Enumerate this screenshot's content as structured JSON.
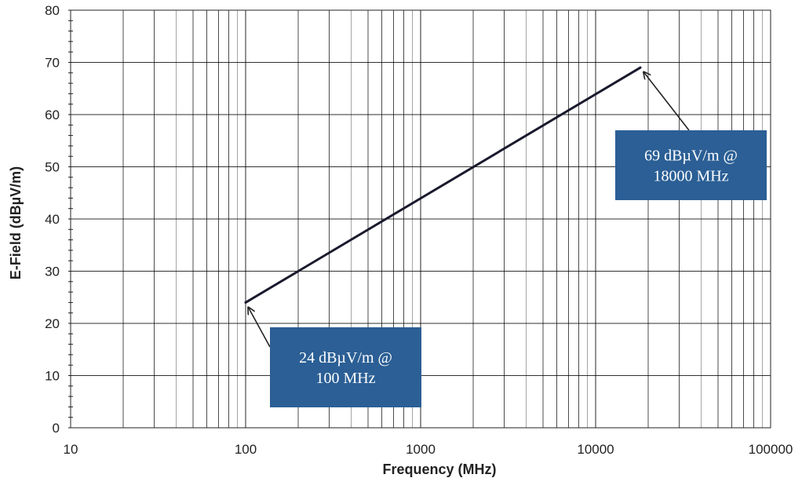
{
  "chart_data": {
    "type": "line",
    "title": "",
    "xlabel": "Frequency (MHz)",
    "ylabel": "E-Field (dBµV/m)",
    "x_scale": "log",
    "xlim": [
      10,
      100000
    ],
    "ylim": [
      0,
      80
    ],
    "x_ticks": [
      "10",
      "100",
      "1000",
      "10000",
      "100000"
    ],
    "y_ticks": [
      "0",
      "10",
      "20",
      "30",
      "40",
      "50",
      "60",
      "70",
      "80"
    ],
    "grid": true,
    "series": [
      {
        "x": [
          100,
          18000
        ],
        "y": [
          24,
          69
        ],
        "color": "#1a1a2e"
      }
    ],
    "annotations": [
      {
        "lines": [
          "24 dBµV/m @",
          "100 MHz"
        ],
        "point": [
          100,
          24
        ]
      },
      {
        "lines": [
          "69 dBµV/m @",
          "18000 MHz"
        ],
        "point": [
          18000,
          69
        ]
      }
    ],
    "colors": {
      "callout_fill": "#2b5f95",
      "grid": "#000000",
      "line": "#1a1a2e"
    }
  }
}
